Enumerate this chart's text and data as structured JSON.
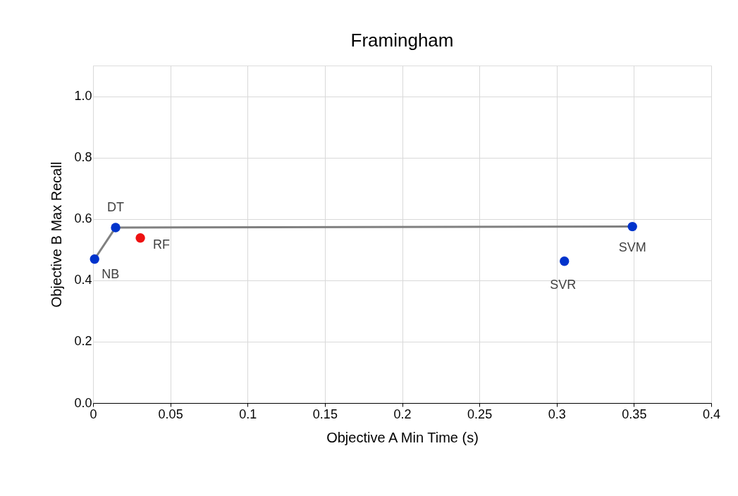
{
  "chart_data": {
    "type": "scatter",
    "title": "Framingham",
    "xlabel": "Objective A Min Time (s)",
    "ylabel": "Objective B Max Recall",
    "xlim": [
      0,
      0.4
    ],
    "xticks": [
      {
        "value": 0,
        "label": "0"
      },
      0.05,
      0.1,
      0.15,
      0.2,
      0.25,
      0.3,
      0.35,
      0.4
    ],
    "ylim": [
      0,
      1.1
    ],
    "yticks": [
      {
        "value": 0,
        "label": "0.0"
      },
      {
        "value": 0.2,
        "label": "0.2"
      },
      {
        "value": 0.4,
        "label": "0.4"
      },
      {
        "value": 0.6,
        "label": "0.6"
      },
      {
        "value": 0.8,
        "label": "0.8"
      },
      {
        "value": 1.0,
        "label": "1.0"
      }
    ],
    "grid": true,
    "marker": "circle",
    "series": [
      {
        "type": "line",
        "marker": "none",
        "color": "#808080",
        "x": [
          0.001,
          0.0146,
          0.349
        ],
        "values": [
          0.469,
          0.572,
          0.575
        ]
      },
      {
        "color": "#0033cc",
        "x": [
          0.001,
          0.0146,
          0.305,
          0.349
        ],
        "values": [
          0.469,
          0.572,
          0.462,
          0.575
        ]
      },
      {
        "color": "#ee1111",
        "x": [
          0.0306
        ],
        "values": [
          0.538
        ]
      }
    ],
    "annotations": [
      {
        "text": "NB",
        "x": 0.001,
        "y": 0.469
      },
      {
        "text": "DT",
        "x": 0.0146,
        "y": 0.572
      },
      {
        "text": "RF",
        "x": 0.0306,
        "y": 0.538
      },
      {
        "text": "SVR",
        "x": 0.305,
        "y": 0.462
      },
      {
        "text": "SVM",
        "x": 0.349,
        "y": 0.575
      }
    ]
  }
}
